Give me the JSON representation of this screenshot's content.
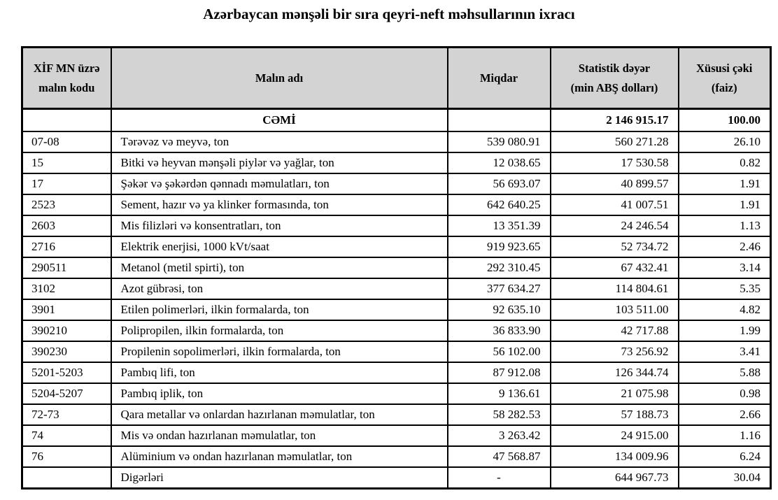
{
  "title": "Azərbaycan mənşəli bir sıra qeyri-neft məhsullarının ixracı",
  "colors": {
    "header_background": "#d3d3d3",
    "border": "#000000",
    "text": "#000000",
    "page_background": "#ffffff"
  },
  "table": {
    "headers": [
      "XİF MN üzrə\nmalın kodu",
      "Malın adı",
      "Miqdar",
      "Statistik dəyər\n(min ABŞ dolları)",
      "Xüsusi çəki\n(faiz)"
    ],
    "total_row": {
      "code": "",
      "name": "CƏMİ",
      "qty": "",
      "value": "2 146 915.17",
      "share": "100.00"
    },
    "rows": [
      {
        "code": "07-08",
        "name": "Tərəvəz və meyvə, ton",
        "qty": "539 080.91",
        "value": "560 271.28",
        "share": "26.10"
      },
      {
        "code": "15",
        "name": "Bitki və heyvan mənşəli piylər və yağlar, ton",
        "qty": "12 038.65",
        "value": "17 530.58",
        "share": "0.82"
      },
      {
        "code": "17",
        "name": "Şəkər və şəkərdən qənnadı məmulatları, ton",
        "qty": "56 693.07",
        "value": "40 899.57",
        "share": "1.91"
      },
      {
        "code": "2523",
        "name": "Sement, hazır və ya klinker formasında, ton",
        "qty": "642 640.25",
        "value": "41 007.51",
        "share": "1.91"
      },
      {
        "code": "2603",
        "name": "Mis filizləri və konsentratları, ton",
        "qty": "13 351.39",
        "value": "24 246.54",
        "share": "1.13"
      },
      {
        "code": "2716",
        "name": "Elektrik enerjisi, 1000 kVt/saat",
        "qty": "919 923.65",
        "value": "52 734.72",
        "share": "2.46"
      },
      {
        "code": "290511",
        "name": "Metanol (metil spirti), ton",
        "qty": "292 310.45",
        "value": "67 432.41",
        "share": "3.14"
      },
      {
        "code": "3102",
        "name": "Azot gübrəsi, ton",
        "qty": "377 634.27",
        "value": "114 804.61",
        "share": "5.35"
      },
      {
        "code": "3901",
        "name": "Etilen polimerləri, ilkin formalarda, ton",
        "qty": "92 635.10",
        "value": "103 511.00",
        "share": "4.82"
      },
      {
        "code": "390210",
        "name": "Polipropilen, ilkin formalarda, ton",
        "qty": "36 833.90",
        "value": "42 717.88",
        "share": "1.99"
      },
      {
        "code": "390230",
        "name": "Propilenin sopolimerləri, ilkin formalarda, ton",
        "qty": "56 102.00",
        "value": "73 256.92",
        "share": "3.41"
      },
      {
        "code": "5201-5203",
        "name": "Pambıq lifi, ton",
        "qty": "87 912.08",
        "value": "126 344.74",
        "share": "5.88"
      },
      {
        "code": "5204-5207",
        "name": "Pambıq iplik, ton",
        "qty": "9 136.61",
        "value": "21 075.98",
        "share": "0.98"
      },
      {
        "code": "72-73",
        "name": "Qara metallar və onlardan hazırlanan məmulatlar, ton",
        "qty": "58 282.53",
        "value": "57 188.73",
        "share": "2.66"
      },
      {
        "code": "74",
        "name": "Mis və ondan hazırlanan məmulatlar, ton",
        "qty": "3 263.42",
        "value": "24 915.00",
        "share": "1.16"
      },
      {
        "code": "76",
        "name": "Alüminium və ondan hazırlanan məmulatlar, ton",
        "qty": "47 568.87",
        "value": "134 009.96",
        "share": "6.24"
      },
      {
        "code": "",
        "name": "Digərləri",
        "qty": "-",
        "value": "644 967.73",
        "share": "30.04"
      }
    ]
  }
}
